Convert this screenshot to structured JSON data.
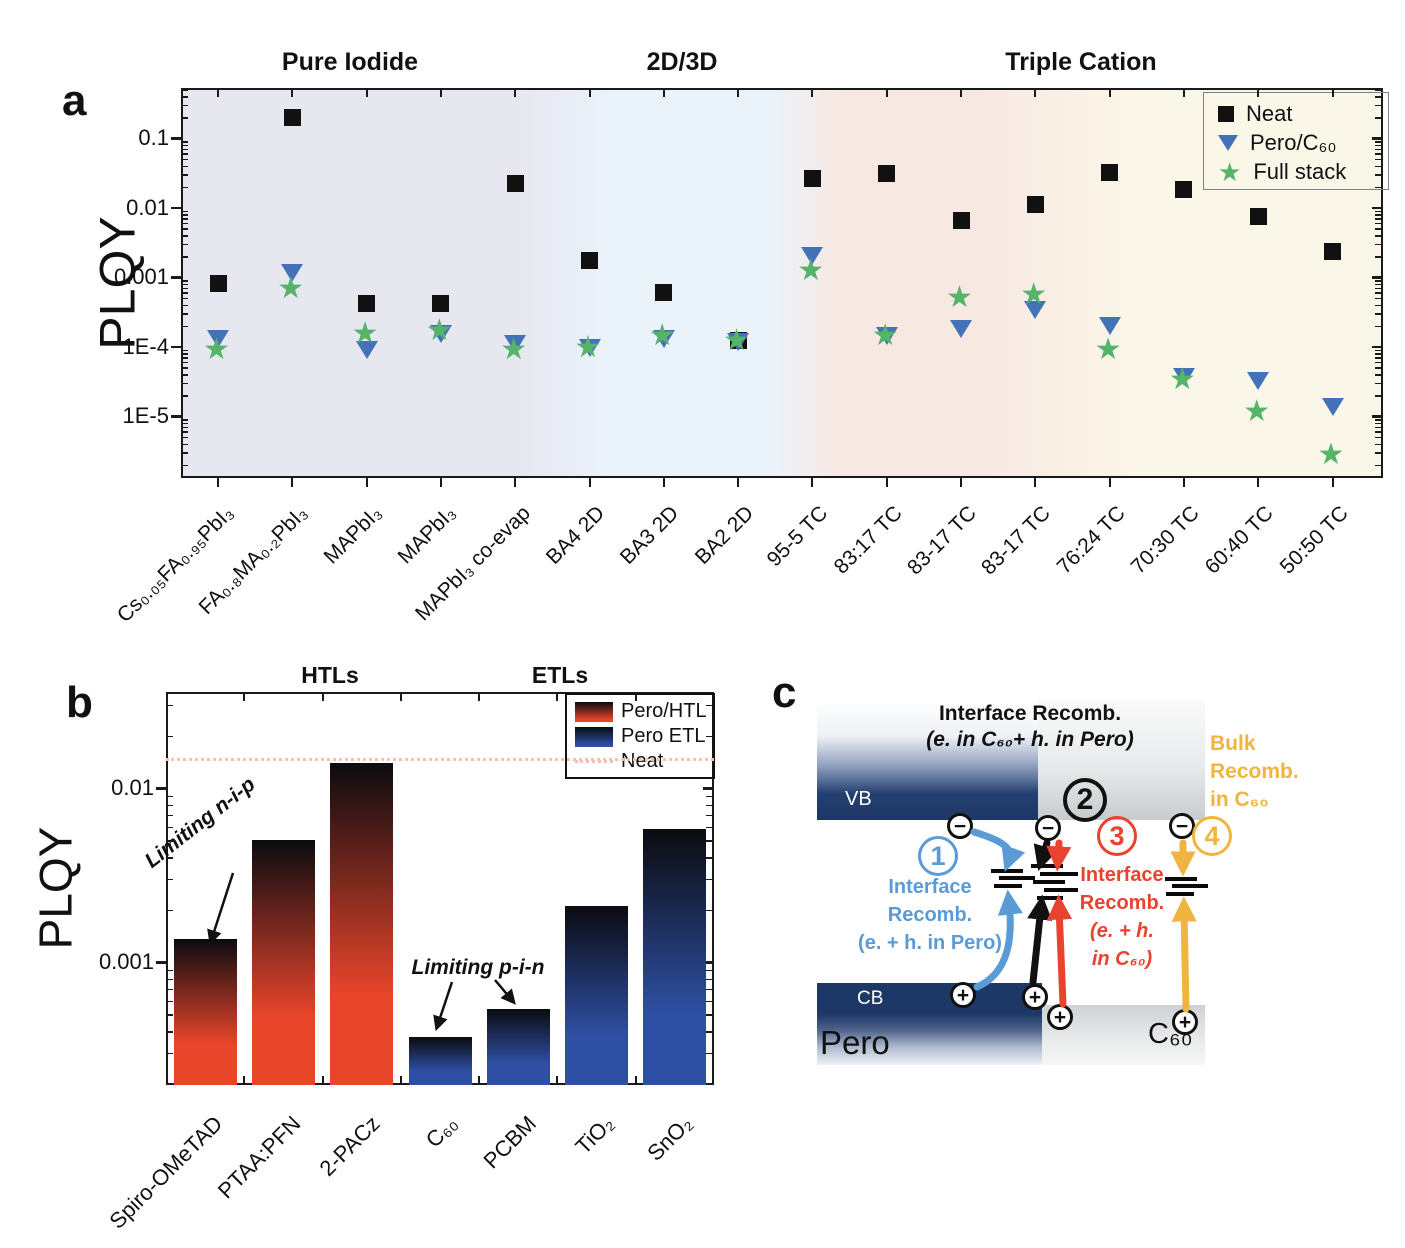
{
  "panels": {
    "a": "a",
    "b": "b",
    "c": "c"
  },
  "chart_data": [
    {
      "id": "panel-a",
      "type": "scatter",
      "ylabel": "PLQY",
      "yscale": "log",
      "ylim": [
        1.3e-06,
        0.55
      ],
      "yticks": [
        {
          "v": 0.1,
          "label": "0.1"
        },
        {
          "v": 0.01,
          "label": "0.01"
        },
        {
          "v": 0.001,
          "label": "0.001"
        },
        {
          "v": 0.0001,
          "label": "1E-4"
        },
        {
          "v": 1e-05,
          "label": "1E-5"
        }
      ],
      "categories": [
        "Cs₀.₀₅FA₀.₉₅PbI₃",
        "FA₀.₈MA₀.₂PbI₃",
        "MAPbI₃",
        "MAPbI₃",
        "MAPbI₃ co-evap",
        "BA4 2D",
        "BA3 2D",
        "BA2 2D",
        "95-5 TC",
        "83:17 TC",
        "83-17 TC",
        "83-17 TC",
        "76:24 TC",
        "70:30 TC",
        "60:40 TC",
        "50:50 TC"
      ],
      "groups": [
        {
          "label": "Pure Iodide",
          "span": [
            0,
            4
          ]
        },
        {
          "label": "2D/3D",
          "span": [
            5,
            7
          ]
        },
        {
          "label": "Triple Cation",
          "span": [
            8,
            15
          ]
        }
      ],
      "series": [
        {
          "name": "Neat",
          "marker": "square",
          "color": "#111111",
          "values": [
            0.0008,
            0.2,
            0.00042,
            0.00042,
            0.022,
            0.0017,
            0.0006,
            0.00012,
            0.026,
            0.031,
            0.0065,
            0.011,
            0.032,
            0.018,
            0.0075,
            0.0023
          ]
        },
        {
          "name": "Pero/C₆₀",
          "marker": "triangle-down",
          "color": "#4472b8",
          "values": [
            0.00013,
            0.00115,
            9e-05,
            0.00015,
            0.00011,
            9.5e-05,
            0.00013,
            0.000115,
            0.002,
            0.00014,
            0.00018,
            0.00033,
            0.0002,
            3.6e-05,
            3.2e-05,
            1.35e-05
          ]
        },
        {
          "name": "Full stack",
          "marker": "star",
          "color": "#55b36a",
          "values": [
            8e-05,
            0.0006,
            0.000135,
            0.00015,
            8e-05,
            8.5e-05,
            0.00013,
            0.00011,
            0.0011,
            0.00013,
            0.00045,
            0.0005,
            8e-05,
            3e-05,
            1.05e-05,
            2.5e-06
          ]
        }
      ],
      "legend_position": "top-right",
      "band_colors": [
        "#e7e7f0",
        "#ebf3fa",
        "#f7e8e2",
        "#fbf7e8"
      ],
      "grid": false
    },
    {
      "id": "panel-b",
      "type": "bar",
      "ylabel": "PLQY",
      "yscale": "log",
      "ylim": [
        0.00019,
        0.036
      ],
      "yticks": [
        {
          "v": 0.01,
          "label": "0.01"
        },
        {
          "v": 0.001,
          "label": "0.001"
        }
      ],
      "categories": [
        "Spiro-OMeTAD",
        "PTAA:PFN",
        "2-PACz",
        "C₆₀",
        "PCBM",
        "TiO₂",
        "SnO₂"
      ],
      "values": [
        0.00135,
        0.005,
        0.014,
        0.00037,
        0.00054,
        0.0021,
        0.0058
      ],
      "bar_types": [
        "HTL",
        "HTL",
        "HTL",
        "ETL",
        "ETL",
        "ETL",
        "ETL"
      ],
      "group_headers": [
        "HTLs",
        "ETLs"
      ],
      "neat_reference": 0.0145,
      "legend": [
        {
          "label": "Pero/HTL",
          "color": "#e8452a"
        },
        {
          "label": "Pero ETL",
          "color": "#2e4fa3"
        },
        {
          "label": "Neat",
          "style": "dotted",
          "color": "#f2c4b4"
        }
      ],
      "annotations": [
        {
          "text": "Limiting n-i-p",
          "target": "Spiro-OMeTAD"
        },
        {
          "text": "Limiting p-i-n",
          "targets": [
            "C₆₀",
            "PCBM"
          ]
        }
      ],
      "grid": false
    }
  ],
  "panel_c": {
    "title_line1": "Interface Recomb.",
    "title_line2": "(e. in C₆₀+ h. in Pero)",
    "vb_label": "VB",
    "cb_label": "CB",
    "pero_label": "Pero",
    "c60_label": "C₆₀",
    "minus": "−",
    "plus": "+",
    "process_1": {
      "num": "1",
      "color": "#5b9bd5",
      "line1": "Interface",
      "line2": "Recomb.",
      "line3": "(e. + h. in Pero)"
    },
    "process_2": {
      "num": "2",
      "color": "#111111"
    },
    "process_3": {
      "num": "3",
      "color": "#e8432e",
      "line1": "Interface",
      "line2": "Recomb.",
      "line3": "(e. + h.",
      "line4": "in C₆₀)"
    },
    "process_4": {
      "num": "4",
      "color": "#f0b441",
      "line1": "Bulk",
      "line2": "Recomb.",
      "line3": "in C₆₀"
    },
    "arrow_colors": {
      "blue": "#5b9bd5",
      "black": "#111111",
      "red": "#e8432e",
      "yellow": "#f0b441"
    }
  }
}
